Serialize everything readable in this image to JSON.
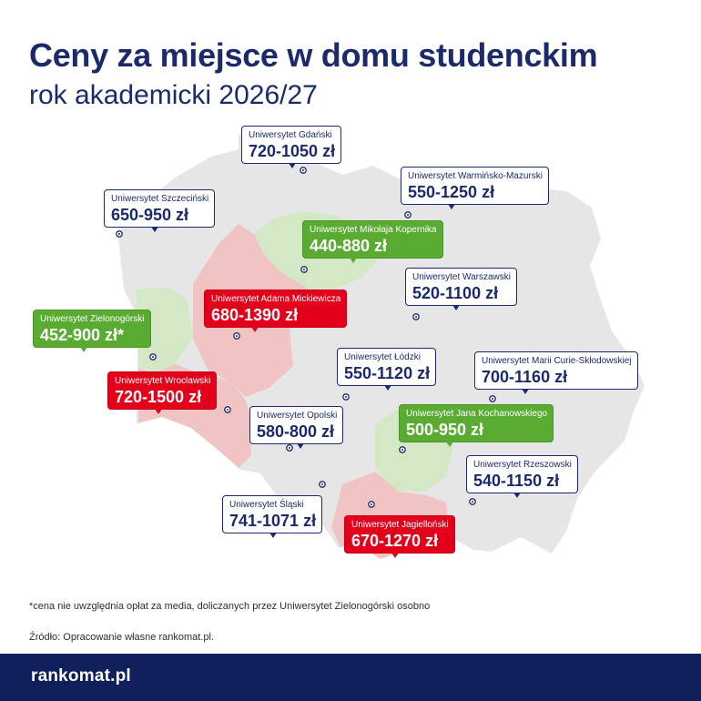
{
  "header": {
    "title": "Ceny za miejsce w domu studenckim",
    "subtitle": "rok akademicki 2026/27"
  },
  "colors": {
    "navy": "#1b2a6b",
    "green": "#5aab32",
    "red": "#e3001b",
    "map_base": "#e6e6e6",
    "region_green": "#d3e8c5",
    "region_red": "#f0c4c2",
    "footer_bg": "#0f1f5c"
  },
  "universities": [
    {
      "name": "Uniwersytet Gdański",
      "price": "720-1050 zł",
      "style": "white"
    },
    {
      "name": "Uniwersytet Warmińsko-Mazurski",
      "price": "550-1250 zł",
      "style": "white"
    },
    {
      "name": "Uniwersytet Szczeciński",
      "price": "650-950 zł",
      "style": "white"
    },
    {
      "name": "Uniwersytet Mikołaja Kopernika",
      "price": "440-880 zł",
      "style": "green"
    },
    {
      "name": "Uniwersytet Warszawski",
      "price": "520-1100 zł",
      "style": "white"
    },
    {
      "name": "Uniwersytet Adama Mickiewicza",
      "price": "680-1390 zł",
      "style": "red"
    },
    {
      "name": "Uniwersytet Zielonogórski",
      "price": "452-900 zł*",
      "style": "green"
    },
    {
      "name": "Uniwersytet Łódzki",
      "price": "550-1120 zł",
      "style": "white"
    },
    {
      "name": "Uniwersytet Marii Curie-Skłodowskiej",
      "price": "700-1160 zł",
      "style": "white"
    },
    {
      "name": "Uniwersytet Wrocławski",
      "price": "720-1500 zł",
      "style": "red"
    },
    {
      "name": "Uniwersytet Opolski",
      "price": "580-800 zł",
      "style": "white"
    },
    {
      "name": "Uniwersytet Jana Kochanowskiego",
      "price": "500-950 zł",
      "style": "green"
    },
    {
      "name": "Uniwersytet Rzeszowski",
      "price": "540-1150 zł",
      "style": "white"
    },
    {
      "name": "Uniwersytet Śląski",
      "price": "741-1071 zł",
      "style": "white"
    },
    {
      "name": "Uniwersytet Jagielloński",
      "price": "670-1270 zł",
      "style": "red"
    }
  ],
  "footnote": "*cena nie uwzględnia opłat za media, doliczanych przez Uniwersytet Zielonogórski osobno",
  "source": "Źródło: Opracowanie własne rankomat.pl.",
  "footer": {
    "logo": "rankomat.pl"
  }
}
